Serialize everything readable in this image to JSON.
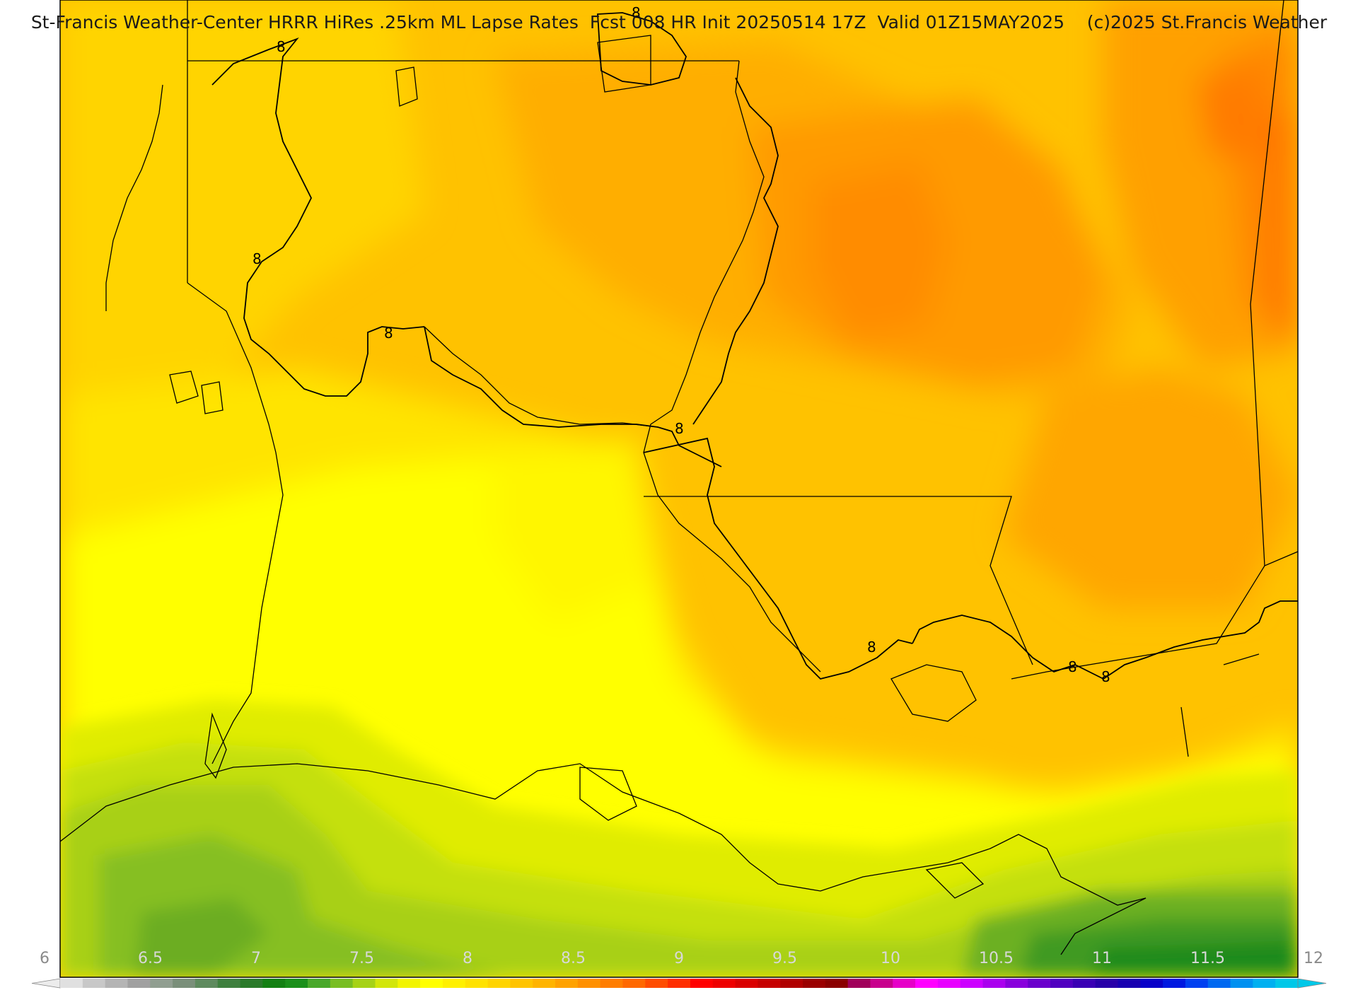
{
  "title": "St-Francis Weather-Center HRRR HiRes .25km ML Lapse Rates  Fcst 008 HR Init 20250514 17Z  Valid 01Z15MAY2025    (c)2025 St.Francis Weather",
  "contour_labels": [
    "8",
    "8",
    "8",
    "8",
    "8",
    "8",
    "8",
    "8"
  ],
  "colorbar": {
    "ticks": [
      "6",
      "6.5",
      "7",
      "7.5",
      "8",
      "8.5",
      "9",
      "9.5",
      "10",
      "10.5",
      "11",
      "11.5",
      "12"
    ],
    "colors": [
      "#e0e0e0",
      "#c8c8c8",
      "#b4b4b4",
      "#a0a0a0",
      "#909e90",
      "#7a8f7a",
      "#5e8a5e",
      "#3f803f",
      "#2a7a2a",
      "#138013",
      "#1a8f1a",
      "#48a82a",
      "#78be22",
      "#a6d216",
      "#d2e60a",
      "#f2f400",
      "#ffff00",
      "#fff000",
      "#ffe200",
      "#ffd400",
      "#ffc400",
      "#ffb400",
      "#ffa200",
      "#ff9000",
      "#ff7d00",
      "#ff6800",
      "#ff4c00",
      "#ff2e00",
      "#ff0000",
      "#ee0000",
      "#da0000",
      "#c60000",
      "#b00000",
      "#9a0000",
      "#8a0000",
      "#a0005a",
      "#c8008c",
      "#e600c8",
      "#ff00ff",
      "#e800ff",
      "#cc00ff",
      "#aa00ee",
      "#8800dc",
      "#6a00cc",
      "#5000c0",
      "#3a00b4",
      "#2800a8",
      "#1800b0",
      "#0800c8",
      "#0018e0",
      "#0040f0",
      "#0068f0",
      "#0090f0",
      "#00b0f0",
      "#00c8e8"
    ]
  }
}
